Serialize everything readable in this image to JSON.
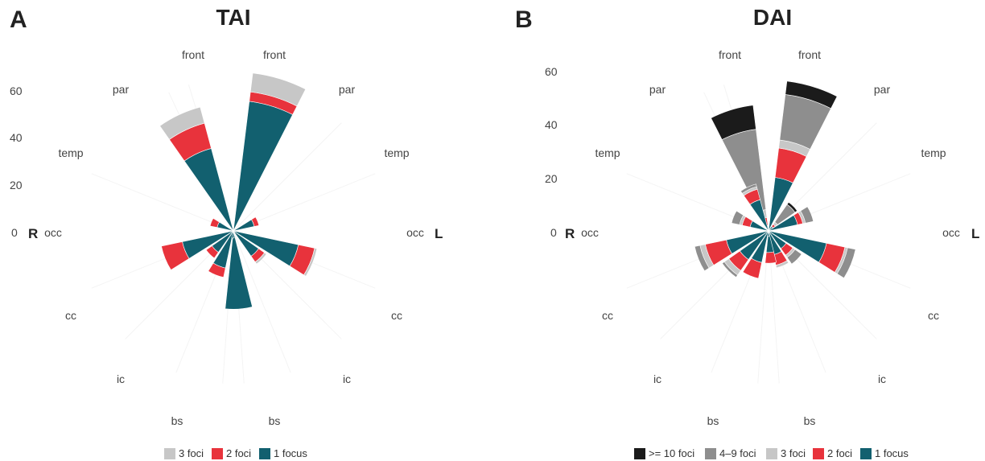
{
  "colors": {
    "ge10": "#1b1b1b",
    "4to9": "#8e8e8e",
    "3": "#c7c7c7",
    "2": "#e8333c",
    "1": "#12606f"
  },
  "chart_data": [
    {
      "type": "stacked-polar-bar",
      "panel_label": "A",
      "title": "TAI",
      "ticks": [
        0,
        20,
        40,
        60
      ],
      "rlim": [
        0,
        70
      ],
      "side_labels": {
        "right_hemisphere": "R",
        "left_hemisphere": "L"
      },
      "regions": [
        "front",
        "par",
        "temp",
        "occ",
        "cc",
        "ic",
        "bs"
      ],
      "legend": [
        {
          "key": "3",
          "label": "3 foci"
        },
        {
          "key": "2",
          "label": "2 foci"
        },
        {
          "key": "1",
          "label": "1 focus"
        }
      ],
      "bars": [
        {
          "hemisphere": "L",
          "region": "front",
          "segments": {
            "1": 55,
            "2": 4,
            "3": 8
          }
        },
        {
          "hemisphere": "L",
          "region": "temp",
          "segments": {
            "1": 9,
            "2": 2,
            "3": 0
          }
        },
        {
          "hemisphere": "L",
          "region": "occ",
          "segments": {
            "1": 28,
            "2": 7,
            "3": 1
          }
        },
        {
          "hemisphere": "L",
          "region": "cc",
          "segments": {
            "1": 13,
            "2": 3,
            "3": 1
          }
        },
        {
          "hemisphere": "L",
          "region": "bs",
          "segments": {
            "1": 33,
            "2": 0,
            "3": 0
          }
        },
        {
          "hemisphere": "R",
          "region": "front",
          "segments": {
            "1": 1,
            "2": 0,
            "3": 0
          }
        },
        {
          "hemisphere": "R",
          "region": "par",
          "segments": {
            "1": 36,
            "2": 11,
            "3": 7
          }
        },
        {
          "hemisphere": "R",
          "region": "temp",
          "segments": {
            "1": 7,
            "2": 3,
            "3": 0
          }
        },
        {
          "hemisphere": "R",
          "region": "occ",
          "segments": {
            "1": 22,
            "2": 9,
            "3": 0
          }
        },
        {
          "hemisphere": "R",
          "region": "cc",
          "segments": {
            "1": 11,
            "2": 3,
            "3": 0
          }
        },
        {
          "hemisphere": "R",
          "region": "ic",
          "segments": {
            "1": 16,
            "2": 4,
            "3": 0
          }
        },
        {
          "hemisphere": "R",
          "region": "bs",
          "segments": {
            "1": 3,
            "2": 0,
            "3": 0
          }
        }
      ]
    },
    {
      "type": "stacked-polar-bar",
      "panel_label": "B",
      "title": "DAI",
      "ticks": [
        0,
        20,
        40,
        60
      ],
      "rlim": [
        0,
        70
      ],
      "side_labels": {
        "right_hemisphere": "R",
        "left_hemisphere": "L"
      },
      "regions": [
        "front",
        "par",
        "temp",
        "occ",
        "cc",
        "ic",
        "bs"
      ],
      "legend": [
        {
          "key": "ge10",
          "label": ">= 10 foci"
        },
        {
          "key": "4to9",
          "label": "4–9 foci"
        },
        {
          "key": "3",
          "label": "3 foci"
        },
        {
          "key": "2",
          "label": "2 foci"
        },
        {
          "key": "1",
          "label": "1 focus"
        }
      ],
      "bars": [
        {
          "hemisphere": "L",
          "region": "front",
          "segments": {
            "1": 20,
            "2": 11,
            "3": 3,
            "4to9": 17,
            "ge10": 5
          }
        },
        {
          "hemisphere": "L",
          "region": "par",
          "segments": {
            "1": 2,
            "2": 1,
            "3": 1,
            "4to9": 8,
            "ge10": 1
          }
        },
        {
          "hemisphere": "L",
          "region": "temp",
          "segments": {
            "1": 11,
            "2": 2,
            "3": 1,
            "4to9": 3,
            "ge10": 0
          }
        },
        {
          "hemisphere": "L",
          "region": "occ",
          "segments": {
            "1": 22,
            "2": 7,
            "3": 1,
            "4to9": 3,
            "ge10": 0
          }
        },
        {
          "hemisphere": "L",
          "region": "cc",
          "segments": {
            "1": 8,
            "2": 3,
            "3": 1,
            "4to9": 3,
            "ge10": 0
          }
        },
        {
          "hemisphere": "L",
          "region": "ic",
          "segments": {
            "1": 9,
            "2": 4,
            "3": 1,
            "4to9": 0,
            "ge10": 0
          }
        },
        {
          "hemisphere": "L",
          "region": "bs",
          "segments": {
            "1": 8,
            "2": 4,
            "3": 0,
            "4to9": 0,
            "ge10": 0
          }
        },
        {
          "hemisphere": "R",
          "region": "front",
          "segments": {
            "1": 2,
            "2": 3,
            "3": 3,
            "4to9": 30,
            "ge10": 9
          }
        },
        {
          "hemisphere": "R",
          "region": "par",
          "segments": {
            "1": 12,
            "2": 4,
            "3": 1,
            "4to9": 1,
            "ge10": 0
          }
        },
        {
          "hemisphere": "R",
          "region": "temp",
          "segments": {
            "1": 7,
            "2": 3,
            "3": 1,
            "4to9": 3,
            "ge10": 0
          }
        },
        {
          "hemisphere": "R",
          "region": "occ",
          "segments": {
            "1": 16,
            "2": 8,
            "3": 2,
            "4to9": 2,
            "ge10": 0
          }
        },
        {
          "hemisphere": "R",
          "region": "cc",
          "segments": {
            "1": 13,
            "2": 5,
            "3": 2,
            "4to9": 1,
            "ge10": 0
          }
        },
        {
          "hemisphere": "R",
          "region": "ic",
          "segments": {
            "1": 12,
            "2": 6,
            "3": 0,
            "4to9": 0,
            "ge10": 0
          }
        },
        {
          "hemisphere": "R",
          "region": "bs",
          "segments": {
            "1": 2,
            "2": 0,
            "3": 0,
            "4to9": 0,
            "ge10": 0
          }
        }
      ]
    }
  ]
}
